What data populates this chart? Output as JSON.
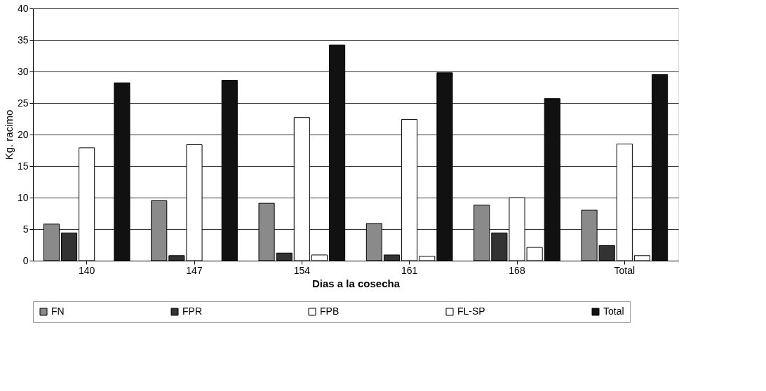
{
  "chart_data": {
    "type": "bar",
    "xlabel": "Dias a la cosecha",
    "ylabel": "Kg. racimo",
    "categories": [
      "140",
      "147",
      "154",
      "161",
      "168",
      "Total"
    ],
    "series": [
      {
        "name": "FN",
        "color": "#8a8a8a",
        "values": [
          5.8,
          9.5,
          9.1,
          5.9,
          8.8,
          8.0
        ]
      },
      {
        "name": "FPR",
        "color": "#333333",
        "values": [
          4.4,
          0.8,
          1.2,
          0.9,
          4.4,
          2.4
        ]
      },
      {
        "name": "FPB",
        "color": "#ffffff",
        "values": [
          17.9,
          18.4,
          22.7,
          22.4,
          10.0,
          18.5
        ]
      },
      {
        "name": "FL-SP",
        "color": "#ffffff",
        "values": [
          null,
          null,
          0.9,
          0.7,
          2.1,
          0.8
        ]
      },
      {
        "name": "Total",
        "color": "#111111",
        "values": [
          28.2,
          28.6,
          34.2,
          29.8,
          25.7,
          29.5
        ]
      }
    ],
    "ylim": [
      0,
      40
    ],
    "yticks": [
      0,
      5,
      10,
      15,
      20,
      25,
      30,
      35,
      40
    ],
    "grid": "y",
    "legend": "bottom"
  }
}
